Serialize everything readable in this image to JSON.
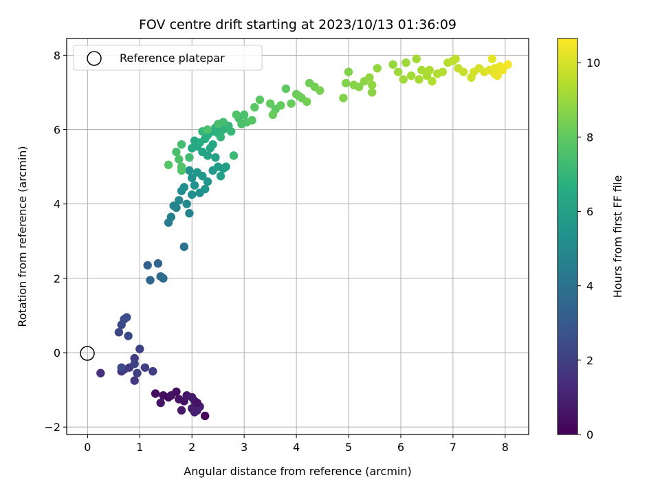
{
  "chart_data": {
    "type": "scatter",
    "title": "FOV centre drift starting at 2023/10/13 01:36:09",
    "xlabel": "Angular distance from reference (arcmin)",
    "ylabel": "Rotation from reference (arcmin)",
    "colorbar_label": "Hours from first FF file",
    "xlim": [
      -0.4,
      8.45
    ],
    "ylim": [
      -2.2,
      8.45
    ],
    "clim": [
      0,
      10.65
    ],
    "colormap": "viridis",
    "xticks": [
      0,
      1,
      2,
      3,
      4,
      5,
      6,
      7,
      8
    ],
    "xtick_labels": [
      "0",
      "1",
      "2",
      "3",
      "4",
      "5",
      "6",
      "7",
      "8"
    ],
    "yticks": [
      -2,
      0,
      2,
      4,
      6,
      8
    ],
    "ytick_labels": [
      "−2",
      "0",
      "2",
      "4",
      "6",
      "8"
    ],
    "cticks": [
      0,
      2,
      4,
      6,
      8,
      10
    ],
    "ctick_labels": [
      "0",
      "2",
      "4",
      "6",
      "8",
      "10"
    ],
    "grid": true,
    "legend": {
      "position": "top-left",
      "label": "Reference platepar"
    },
    "reference_point": {
      "x": 0,
      "y": 0
    },
    "points": [
      [
        1.3,
        -1.1,
        0.3
      ],
      [
        1.45,
        -1.15,
        0.4
      ],
      [
        1.55,
        -1.2,
        0.35
      ],
      [
        1.6,
        -1.15,
        0.5
      ],
      [
        1.7,
        -1.05,
        0.45
      ],
      [
        1.75,
        -1.25,
        0.6
      ],
      [
        1.85,
        -1.3,
        0.55
      ],
      [
        1.9,
        -1.15,
        0.65
      ],
      [
        2.0,
        -1.2,
        0.7
      ],
      [
        2.05,
        -1.3,
        0.8
      ],
      [
        1.8,
        -1.55,
        0.75
      ],
      [
        2.0,
        -1.5,
        0.85
      ],
      [
        2.05,
        -1.6,
        0.9
      ],
      [
        2.1,
        -1.55,
        0.95
      ],
      [
        2.15,
        -1.45,
        1.0
      ],
      [
        2.25,
        -1.7,
        0.2
      ],
      [
        1.4,
        -1.35,
        0.6
      ],
      [
        2.1,
        -1.35,
        0.5
      ],
      [
        0.25,
        -0.55,
        1.5
      ],
      [
        0.65,
        -0.5,
        1.6
      ],
      [
        0.7,
        -0.45,
        1.7
      ],
      [
        0.8,
        -0.4,
        1.8
      ],
      [
        0.9,
        -0.15,
        1.9
      ],
      [
        0.95,
        -0.55,
        2.0
      ],
      [
        1.0,
        0.1,
        2.1
      ],
      [
        1.1,
        -0.4,
        2.0
      ],
      [
        1.25,
        -0.5,
        1.9
      ],
      [
        0.9,
        -0.75,
        1.8
      ],
      [
        0.6,
        0.55,
        2.3
      ],
      [
        0.65,
        0.75,
        2.4
      ],
      [
        0.7,
        0.9,
        2.5
      ],
      [
        0.75,
        0.95,
        2.6
      ],
      [
        0.78,
        0.45,
        2.5
      ],
      [
        0.9,
        -0.3,
        2.2
      ],
      [
        0.65,
        -0.4,
        2.4
      ],
      [
        1.15,
        2.35,
        3.4
      ],
      [
        1.35,
        2.4,
        3.5
      ],
      [
        1.2,
        1.95,
        3.6
      ],
      [
        1.4,
        2.05,
        3.7
      ],
      [
        1.45,
        2.0,
        3.8
      ],
      [
        1.85,
        2.85,
        4.1
      ],
      [
        1.55,
        3.5,
        4.5
      ],
      [
        1.6,
        3.65,
        4.6
      ],
      [
        1.7,
        3.9,
        4.7
      ],
      [
        1.95,
        3.75,
        4.8
      ],
      [
        1.65,
        3.95,
        4.8
      ],
      [
        1.75,
        4.1,
        5.0
      ],
      [
        1.8,
        4.35,
        5.1
      ],
      [
        1.9,
        4.0,
        5.0
      ],
      [
        1.85,
        4.45,
        5.2
      ],
      [
        2.0,
        4.25,
        5.3
      ],
      [
        2.05,
        4.5,
        5.4
      ],
      [
        2.15,
        4.3,
        5.3
      ],
      [
        2.25,
        4.4,
        5.5
      ],
      [
        2.0,
        4.7,
        5.5
      ],
      [
        2.1,
        4.85,
        5.6
      ],
      [
        2.3,
        4.6,
        5.6
      ],
      [
        2.2,
        4.75,
        5.7
      ],
      [
        1.95,
        4.9,
        5.4
      ],
      [
        2.4,
        4.9,
        5.8
      ],
      [
        2.5,
        5.0,
        5.9
      ],
      [
        2.6,
        4.95,
        5.9
      ],
      [
        2.65,
        5.0,
        6.0
      ],
      [
        2.55,
        4.75,
        6.0
      ],
      [
        2.45,
        5.25,
        6.1
      ],
      [
        2.3,
        5.3,
        6.2
      ],
      [
        2.2,
        5.4,
        6.3
      ],
      [
        2.35,
        5.5,
        6.3
      ],
      [
        2.4,
        5.6,
        6.4
      ],
      [
        2.1,
        5.55,
        6.4
      ],
      [
        2.0,
        5.5,
        6.5
      ],
      [
        2.05,
        5.7,
        6.5
      ],
      [
        2.25,
        5.75,
        6.6
      ],
      [
        2.15,
        5.65,
        6.6
      ],
      [
        2.3,
        5.85,
        6.7
      ],
      [
        2.4,
        5.95,
        6.7
      ],
      [
        2.5,
        5.9,
        6.8
      ],
      [
        2.45,
        6.05,
        6.8
      ],
      [
        2.6,
        6.0,
        6.9
      ],
      [
        2.7,
        6.1,
        7.0
      ],
      [
        2.55,
        5.8,
        7.0
      ],
      [
        2.75,
        5.95,
        7.1
      ],
      [
        2.2,
        5.95,
        7.1
      ],
      [
        2.8,
        5.3,
        7.2
      ],
      [
        1.95,
        5.25,
        7.3
      ],
      [
        1.8,
        5.6,
        7.4
      ],
      [
        1.7,
        5.4,
        7.5
      ],
      [
        1.75,
        5.2,
        7.6
      ],
      [
        1.8,
        5.0,
        7.7
      ],
      [
        1.55,
        5.05,
        7.8
      ],
      [
        1.8,
        4.9,
        7.7
      ],
      [
        2.3,
        6.0,
        7.6
      ],
      [
        2.5,
        6.15,
        7.5
      ],
      [
        2.6,
        6.2,
        7.4
      ],
      [
        2.9,
        6.3,
        7.5
      ],
      [
        2.95,
        6.15,
        7.6
      ],
      [
        3.05,
        6.2,
        7.7
      ],
      [
        3.15,
        6.25,
        7.8
      ],
      [
        3.0,
        6.4,
        7.6
      ],
      [
        2.85,
        6.4,
        7.7
      ],
      [
        3.2,
        6.6,
        7.9
      ],
      [
        3.3,
        6.8,
        8.0
      ],
      [
        3.5,
        6.7,
        8.1
      ],
      [
        3.6,
        6.55,
        8.0
      ],
      [
        3.7,
        6.65,
        8.1
      ],
      [
        3.55,
        6.4,
        8.2
      ],
      [
        3.8,
        7.1,
        8.0
      ],
      [
        4.0,
        6.95,
        8.2
      ],
      [
        4.1,
        6.85,
        8.3
      ],
      [
        4.25,
        7.25,
        8.3
      ],
      [
        4.35,
        7.15,
        8.4
      ],
      [
        4.45,
        7.05,
        8.5
      ],
      [
        4.2,
        6.75,
        8.4
      ],
      [
        4.05,
        6.9,
        8.3
      ],
      [
        3.9,
        6.7,
        8.2
      ],
      [
        4.95,
        7.25,
        8.6
      ],
      [
        5.0,
        7.55,
        8.6
      ],
      [
        5.1,
        7.2,
        8.7
      ],
      [
        5.2,
        7.15,
        8.7
      ],
      [
        5.3,
        7.3,
        8.8
      ],
      [
        4.9,
        6.85,
        8.6
      ],
      [
        5.4,
        7.4,
        8.9
      ],
      [
        5.45,
        7.2,
        8.9
      ],
      [
        5.55,
        7.65,
        8.9
      ],
      [
        5.45,
        7.0,
        8.8
      ],
      [
        5.85,
        7.75,
        9.0
      ],
      [
        5.95,
        7.55,
        9.1
      ],
      [
        6.1,
        7.8,
        9.1
      ],
      [
        6.2,
        7.45,
        9.2
      ],
      [
        6.3,
        7.9,
        9.2
      ],
      [
        6.4,
        7.6,
        9.3
      ],
      [
        6.5,
        7.45,
        9.3
      ],
      [
        6.6,
        7.3,
        9.4
      ],
      [
        6.7,
        7.5,
        9.4
      ],
      [
        6.8,
        7.55,
        9.5
      ],
      [
        6.9,
        7.8,
        9.5
      ],
      [
        7.0,
        7.85,
        9.6
      ],
      [
        7.1,
        7.65,
        9.7
      ],
      [
        7.2,
        7.55,
        9.8
      ],
      [
        7.35,
        7.4,
        9.9
      ],
      [
        7.5,
        7.65,
        10.0
      ],
      [
        7.6,
        7.55,
        10.1
      ],
      [
        7.7,
        7.6,
        10.2
      ],
      [
        7.75,
        7.9,
        10.25
      ],
      [
        7.8,
        7.5,
        10.3
      ],
      [
        7.85,
        7.45,
        10.35
      ],
      [
        7.9,
        7.7,
        10.4
      ],
      [
        7.95,
        7.6,
        10.45
      ],
      [
        8.05,
        7.75,
        10.5
      ],
      [
        7.4,
        7.55,
        10.0
      ],
      [
        6.05,
        7.35,
        9.15
      ],
      [
        6.35,
        7.35,
        9.25
      ],
      [
        6.55,
        7.6,
        9.35
      ],
      [
        7.05,
        7.9,
        9.65
      ],
      [
        7.8,
        7.65,
        10.3
      ]
    ]
  }
}
